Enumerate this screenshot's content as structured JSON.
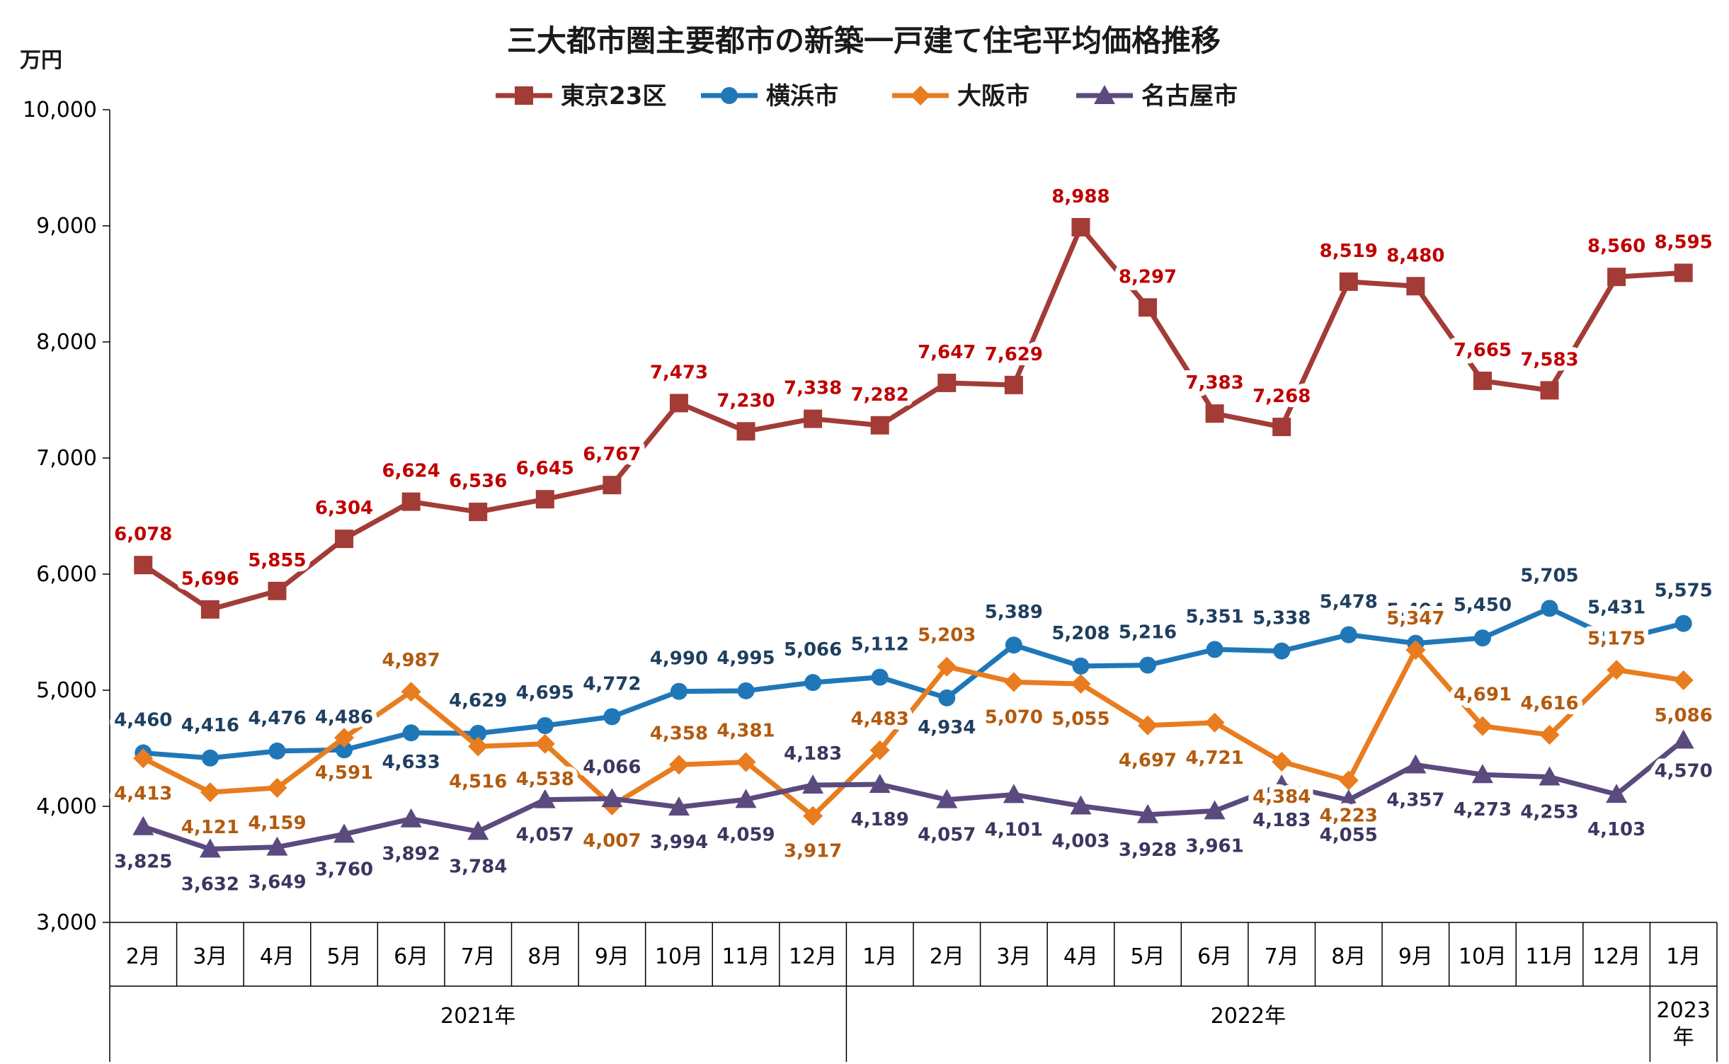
{
  "chart_data": {
    "type": "line",
    "title": "三大都市圏主要都市の新築一戸建て住宅平均価格推移",
    "ylabel": "万円",
    "xlabel": "",
    "ylim": [
      3000,
      10000
    ],
    "yticks": [
      "3,000",
      "4,000",
      "5,000",
      "6,000",
      "7,000",
      "8,000",
      "9,000",
      "10,000"
    ],
    "categories": [
      "2月",
      "3月",
      "4月",
      "5月",
      "6月",
      "7月",
      "8月",
      "9月",
      "10月",
      "11月",
      "12月",
      "1月",
      "2月",
      "3月",
      "4月",
      "5月",
      "6月",
      "7月",
      "8月",
      "9月",
      "10月",
      "11月",
      "12月",
      "1月"
    ],
    "years": [
      {
        "label": "2021年",
        "from": 0,
        "to": 10
      },
      {
        "label": "2022年",
        "from": 11,
        "to": 22
      },
      {
        "label": "2023\n年",
        "from": 23,
        "to": 23
      }
    ],
    "legend_position": "top-center",
    "grid": false,
    "series": [
      {
        "name": "東京23区",
        "color": "#a33b37",
        "label_color": "#c00000",
        "marker": "square",
        "values": [
          6078,
          5696,
          5855,
          6304,
          6624,
          6536,
          6645,
          6767,
          7473,
          7230,
          7338,
          7282,
          7647,
          7629,
          8988,
          8297,
          7383,
          7268,
          8519,
          8480,
          7665,
          7583,
          8560,
          8595
        ],
        "labels": [
          "6,078",
          "5,696",
          "5,855",
          "6,304",
          "6,624",
          "6,536",
          "6,645",
          "6,767",
          "7,473",
          "7,230",
          "7,338",
          "7,282",
          "7,647",
          "7,629",
          "8,988",
          "8,297",
          "7,383",
          "7,268",
          "8,519",
          "8,480",
          "7,665",
          "7,583",
          "8,560",
          "8,595"
        ]
      },
      {
        "name": "横浜市",
        "color": "#1f77b8",
        "label_color": "#1f3f5f",
        "marker": "circle",
        "values": [
          4460,
          4416,
          4476,
          4486,
          4633,
          4629,
          4695,
          4772,
          4990,
          4995,
          5066,
          5112,
          4934,
          5389,
          5208,
          5216,
          5351,
          5338,
          5478,
          5404,
          5450,
          5705,
          5431,
          5575
        ],
        "labels": [
          "4,460",
          "4,416",
          "4,476",
          "4,486",
          "4,633",
          "4,629",
          "4,695",
          "4,772",
          "4,990",
          "4,995",
          "5,066",
          "5,112",
          "4,934",
          "5,389",
          "5,208",
          "5,216",
          "5,351",
          "5,338",
          "5,478",
          "5,404",
          "5,450",
          "5,705",
          "5,431",
          "5,575"
        ]
      },
      {
        "name": "大阪市",
        "color": "#e87c1e",
        "label_color": "#b35a0e",
        "marker": "diamond",
        "values": [
          4413,
          4121,
          4159,
          4591,
          4987,
          4516,
          4538,
          4007,
          4358,
          4381,
          3917,
          4483,
          5203,
          5070,
          5055,
          4697,
          4721,
          4384,
          4223,
          5347,
          4691,
          4616,
          5175,
          5086
        ],
        "labels": [
          "4,413",
          "4,121",
          "4,159",
          "4,591",
          "4,987",
          "4,516",
          "4,538",
          "4,007",
          "4,358",
          "4,381",
          "3,917",
          "4,483",
          "5,203",
          "5,070",
          "5,055",
          "4,697",
          "4,721",
          "4,384",
          "4,223",
          "5,347",
          "4,691",
          "4,616",
          "5,175",
          "5,086"
        ]
      },
      {
        "name": "名古屋市",
        "color": "#5a4a7e",
        "label_color": "#3f3560",
        "marker": "triangle",
        "values": [
          3825,
          3632,
          3649,
          3760,
          3892,
          3784,
          4057,
          4066,
          3994,
          4059,
          4183,
          4189,
          4057,
          4101,
          4003,
          3928,
          3961,
          4183,
          4055,
          4357,
          4273,
          4253,
          4103,
          4570
        ],
        "labels": [
          "3,825",
          "3,632",
          "3,649",
          "3,760",
          "3,892",
          "3,784",
          "4,057",
          "4,066",
          "3,994",
          "4,059",
          "4,183",
          "4,189",
          "4,057",
          "4,101",
          "4,003",
          "3,928",
          "3,961",
          "4,183",
          "4,055",
          "4,357",
          "4,273",
          "4,253",
          "4,103",
          "4,570"
        ]
      }
    ]
  }
}
